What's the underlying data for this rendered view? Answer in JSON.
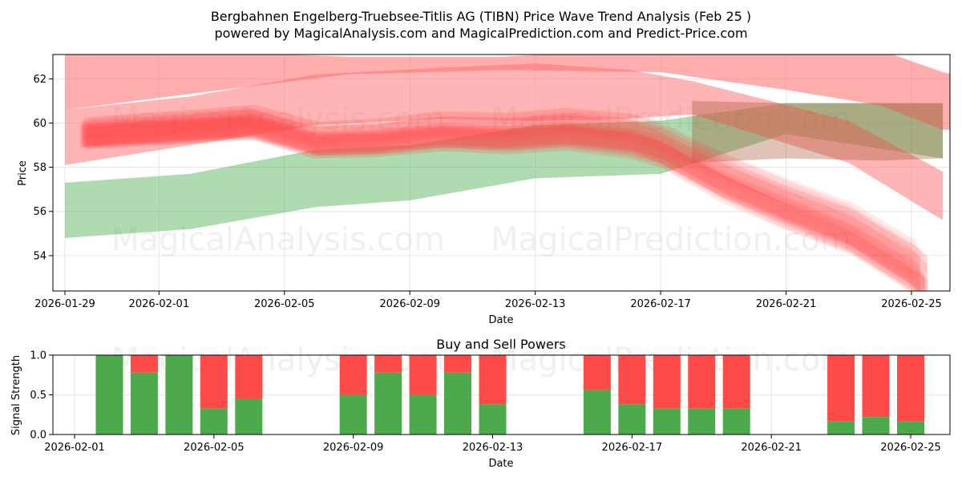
{
  "chart_data": [
    {
      "type": "area",
      "title_line1": "Bergbahnen Engelberg-Truebsee-Titlis AG (TIBN) Price Wave Trend Analysis (Feb 25 )",
      "title_line2": "powered by MagicalAnalysis.com and MagicalPrediction.com and Predict-Price.com",
      "xlabel": "Date",
      "ylabel": "Price",
      "xticks": [
        "2026-01-29",
        "2026-02-01",
        "2026-02-05",
        "2026-02-09",
        "2026-02-13",
        "2026-02-17",
        "2026-02-21",
        "2026-02-25"
      ],
      "yticks": [
        54,
        56,
        58,
        60,
        62
      ],
      "ylim": [
        52.4,
        63.1
      ],
      "xlim_days": [
        -0.3,
        27.5
      ],
      "green_band": {
        "color": "#4caf50",
        "points": [
          [
            0,
            57.3,
            54.8
          ],
          [
            4,
            57.7,
            55.2
          ],
          [
            8,
            58.8,
            56.2
          ],
          [
            11,
            59.0,
            56.5
          ],
          [
            15,
            59.9,
            57.5
          ],
          [
            19,
            60.1,
            57.7
          ],
          [
            23,
            60.9,
            59.5
          ],
          [
            28,
            60.9,
            58.4
          ]
        ]
      },
      "red_band_upper": {
        "color": "#ff6b6b",
        "points": [
          [
            0,
            63.2,
            60.6
          ],
          [
            5,
            63.2,
            61.5
          ],
          [
            9,
            63.0,
            62.2
          ],
          [
            14,
            63.0,
            62.4
          ],
          [
            19,
            63.4,
            62.3
          ],
          [
            23,
            63.4,
            61.5
          ],
          [
            26,
            63.3,
            60.8
          ],
          [
            28,
            62.3,
            59.7
          ],
          [
            29,
            62.0,
            59.7
          ]
        ]
      },
      "red_band_mid": {
        "color": "#ff6b6b",
        "points": [
          [
            0,
            60.6,
            58.1
          ],
          [
            4,
            61.2,
            59.0
          ],
          [
            8,
            62.2,
            59.9
          ],
          [
            12,
            62.5,
            60.2
          ],
          [
            15,
            62.7,
            60.1
          ],
          [
            18,
            62.4,
            60.2
          ],
          [
            20,
            61.9,
            60.4
          ],
          [
            25,
            60.1,
            58.2
          ],
          [
            28,
            57.8,
            55.6
          ]
        ]
      },
      "brown_band": {
        "color": "#a0522d",
        "points": [
          [
            20,
            61.0,
            58.2
          ],
          [
            23,
            60.9,
            58.4
          ],
          [
            26,
            60.9,
            58.3
          ],
          [
            28,
            60.9,
            58.4
          ]
        ]
      },
      "wave_bundle": {
        "color": "#ff4d4d",
        "center": [
          [
            0.6,
            59.5
          ],
          [
            4,
            59.8
          ],
          [
            6,
            60.0
          ],
          [
            8,
            59.2
          ],
          [
            10,
            59.3
          ],
          [
            12,
            59.6
          ],
          [
            14,
            59.5
          ],
          [
            16,
            59.7
          ],
          [
            18,
            59.4
          ],
          [
            19,
            59.0
          ],
          [
            21,
            57.5
          ],
          [
            23,
            56.3
          ],
          [
            25,
            55.2
          ],
          [
            27,
            53.5
          ],
          [
            27.4,
            52.9
          ]
        ],
        "spread": 0.6
      },
      "watermarks": [
        "MagicalAnalysis.com",
        "MagicalPrediction.com"
      ]
    },
    {
      "type": "bar",
      "title": "Buy and Sell Powers",
      "xlabel": "Date",
      "ylabel": "Signal Strength",
      "ylim": [
        0,
        1.0
      ],
      "yticks": [
        "0.0",
        "0.5",
        "1.0"
      ],
      "xticks": [
        "2026-02-01",
        "2026-02-05",
        "2026-02-09",
        "2026-02-13",
        "2026-02-17",
        "2026-02-21",
        "2026-02-25"
      ],
      "buy_color": "#4caa4c",
      "sell_color": "#ff4a4a",
      "bars": [
        {
          "date": "2026-02-02",
          "day": 1,
          "buy": 1.0
        },
        {
          "date": "2026-02-03",
          "day": 2,
          "buy": 0.78
        },
        {
          "date": "2026-02-04",
          "day": 3,
          "buy": 1.0
        },
        {
          "date": "2026-02-05",
          "day": 4,
          "buy": 0.33
        },
        {
          "date": "2026-02-06",
          "day": 5,
          "buy": 0.45
        },
        {
          "date": "2026-02-09",
          "day": 8,
          "buy": 0.5
        },
        {
          "date": "2026-02-10",
          "day": 9,
          "buy": 0.78
        },
        {
          "date": "2026-02-11",
          "day": 10,
          "buy": 0.5
        },
        {
          "date": "2026-02-12",
          "day": 11,
          "buy": 0.78
        },
        {
          "date": "2026-02-13",
          "day": 12,
          "buy": 0.38
        },
        {
          "date": "2026-02-16",
          "day": 15,
          "buy": 0.56
        },
        {
          "date": "2026-02-17",
          "day": 16,
          "buy": 0.38
        },
        {
          "date": "2026-02-18",
          "day": 17,
          "buy": 0.33
        },
        {
          "date": "2026-02-19",
          "day": 18,
          "buy": 0.33
        },
        {
          "date": "2026-02-20",
          "day": 19,
          "buy": 0.33
        },
        {
          "date": "2026-02-23",
          "day": 22,
          "buy": 0.17
        },
        {
          "date": "2026-02-24",
          "day": 23,
          "buy": 0.22
        },
        {
          "date": "2026-02-25",
          "day": 24,
          "buy": 0.17
        }
      ],
      "watermarks": [
        "MagicalAnalysis.com",
        "MagicalPrediction.com"
      ]
    }
  ]
}
